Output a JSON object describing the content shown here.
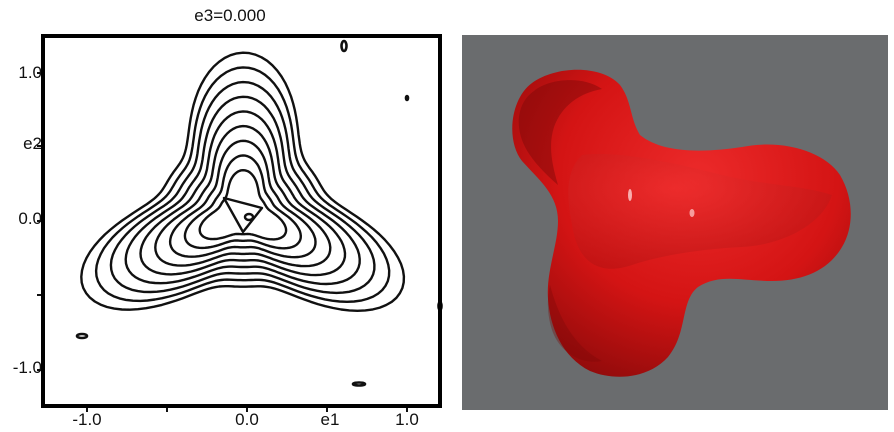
{
  "contour_plot": {
    "title": "e3=0.000",
    "y_tick_labels": [
      "1.0",
      "e2",
      "0.0",
      "-1.0"
    ],
    "x_tick_labels": [
      "-1.0",
      "0.0",
      "e1",
      "1.0"
    ],
    "line_color": "#111111",
    "contour_levels": 9
  },
  "render_3d": {
    "background_color": "#6a6c6e",
    "surface_color": "#d41414",
    "shape": "trefoil-surface"
  }
}
